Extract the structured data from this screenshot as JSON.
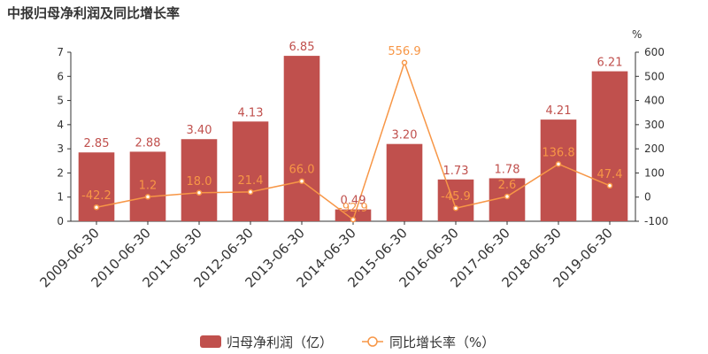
{
  "chart_data": {
    "type": "bar",
    "title": "中报归母净利润及同比增长率",
    "categories": [
      "2009-06-30",
      "2010-06-30",
      "2011-06-30",
      "2012-06-30",
      "2013-06-30",
      "2014-06-30",
      "2015-06-30",
      "2016-06-30",
      "2017-06-30",
      "2018-06-30",
      "2019-06-30"
    ],
    "series": [
      {
        "name": "归母净利润（亿）",
        "type": "bar",
        "axis": "left",
        "color": "#c0504d",
        "values": [
          2.85,
          2.88,
          3.4,
          4.13,
          6.85,
          0.49,
          3.2,
          1.73,
          1.78,
          4.21,
          6.21
        ],
        "labels": [
          "2.85",
          "2.88",
          "3.40",
          "4.13",
          "6.85",
          "0.49",
          "3.20",
          "1.73",
          "1.78",
          "4.21",
          "6.21"
        ]
      },
      {
        "name": "同比增长率（%）",
        "type": "line",
        "axis": "right",
        "color": "#f79646",
        "values": [
          -42.2,
          1.2,
          18.0,
          21.4,
          66.0,
          -92.9,
          556.9,
          -45.9,
          2.6,
          136.8,
          47.4
        ],
        "labels": [
          "-42.2",
          "1.2",
          "18.0",
          "21.4",
          "66.0",
          "-92.9",
          "556.9",
          "-45.9",
          "2.6",
          "136.8",
          "47.4"
        ]
      }
    ],
    "y_left": {
      "min": 0,
      "max": 7,
      "ticks": [
        "0",
        "1",
        "2",
        "3",
        "4",
        "5",
        "6",
        "7"
      ]
    },
    "y_right": {
      "min": -100,
      "max": 600,
      "unit": "%",
      "ticks": [
        "-100",
        "0",
        "100",
        "200",
        "300",
        "400",
        "500",
        "600"
      ]
    },
    "grid": false,
    "legend": "bottom-center"
  }
}
